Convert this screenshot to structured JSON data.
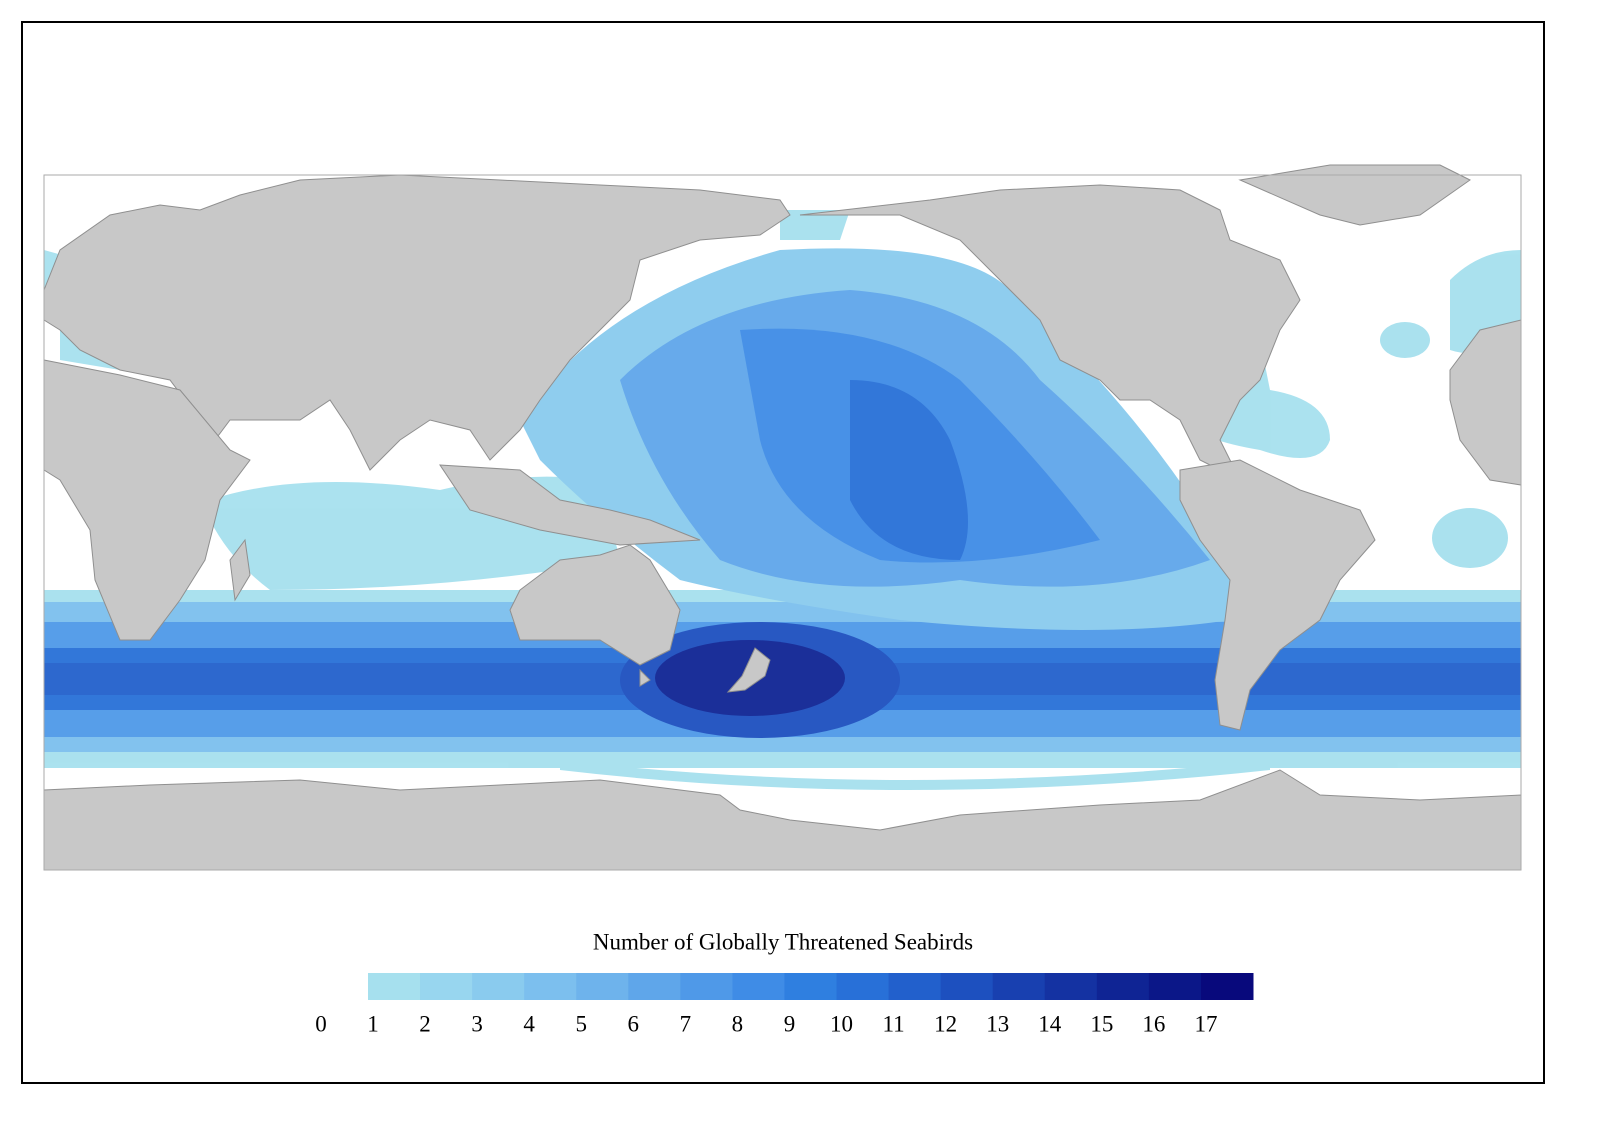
{
  "legend": {
    "title": "Number of Globally Threatened Seabirds",
    "ticks": [
      0,
      1,
      2,
      3,
      4,
      5,
      6,
      7,
      8,
      9,
      10,
      11,
      12,
      13,
      14,
      15,
      16,
      17
    ],
    "colors": [
      "#a6e0ee",
      "#98d6ef",
      "#8acbee",
      "#7cbfee",
      "#6eb3ec",
      "#5fa6ea",
      "#4f99e8",
      "#3f8ce6",
      "#2f7fe0",
      "#2870d8",
      "#2260cc",
      "#1d50bf",
      "#1840b0",
      "#1432a2",
      "#0f2494",
      "#0b1788",
      "#08097c"
    ]
  }
}
